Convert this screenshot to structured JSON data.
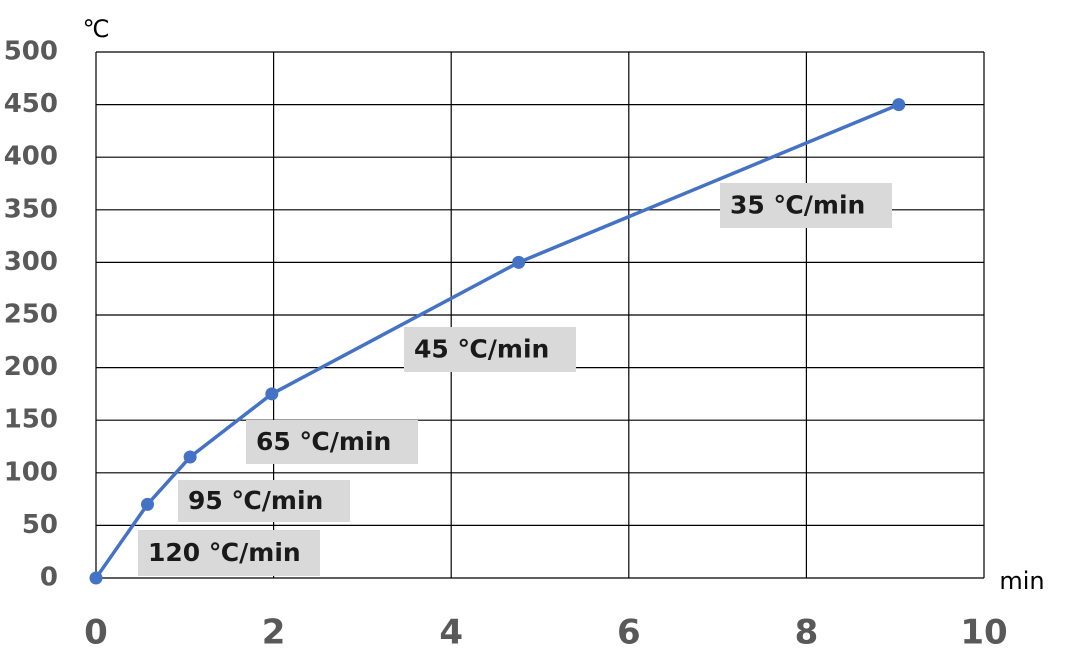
{
  "chart_data": {
    "type": "line",
    "x_label": "min",
    "y_label": "℃",
    "x": [
      0,
      0.58,
      1.06,
      1.98,
      4.76,
      9.04
    ],
    "series": [
      {
        "color": "#4472c4",
        "values": [
          0,
          70,
          115,
          175,
          300,
          450
        ]
      }
    ],
    "xlim": [
      0,
      10
    ],
    "xticks": [
      0,
      2,
      4,
      6,
      8,
      10
    ],
    "ylim": [
      0,
      500
    ],
    "yticks": [
      0,
      50,
      100,
      150,
      200,
      250,
      300,
      350,
      400,
      450,
      500
    ],
    "grid": true,
    "annotations": [
      "120 ℃/min",
      "95 ℃/min",
      "65 ℃/min",
      "45 ℃/min",
      "35 ℃/min"
    ]
  }
}
